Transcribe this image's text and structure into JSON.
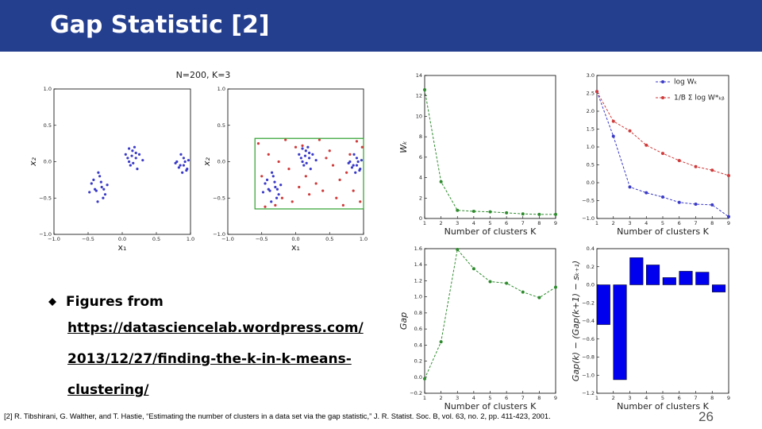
{
  "header": {
    "title": "Gap Statistic [2]"
  },
  "bullet": {
    "text": "Figures from",
    "link_lines": [
      "https://datasciencelab.wordpress.com/",
      "2013/12/27/finding-the-k-in-k-means-",
      "clustering/"
    ]
  },
  "footnote": "[2] R. Tibshirani, G. Walther, and T. Hastie, “Estimating the number of clusters in a data set via the gap statistic,” J. R. Statist. Soc. B, vol. 63, no. 2, pp. 411-423, 2001.",
  "page_number": "26",
  "chart_data": [
    {
      "type": "scatter",
      "title": "N=200, K=3",
      "xlabel": "x₁",
      "ylabel": "x₂",
      "xlim": [
        -1,
        1
      ],
      "ylim": [
        -1,
        1
      ],
      "xticks": [
        {
          "value": -1,
          "label": "−1.0"
        },
        {
          "value": -0.5,
          "label": "−0.5"
        },
        {
          "value": 0,
          "label": "0.0"
        },
        {
          "value": 0.5,
          "label": "0.5"
        },
        {
          "value": 1,
          "label": "1.0"
        }
      ],
      "yticks": [
        {
          "value": -1,
          "label": "−1.0"
        },
        {
          "value": -0.5,
          "label": "−0.5"
        },
        {
          "value": 0,
          "label": "0.0"
        },
        {
          "value": 0.5,
          "label": "0.5"
        },
        {
          "value": 1,
          "label": "1.0"
        }
      ],
      "series": [
        {
          "color": "#3a3ac8",
          "x": [
            -0.45,
            -0.38,
            -0.3,
            -0.25,
            -0.42,
            -0.33,
            -0.28,
            -0.4,
            -0.36,
            -0.22,
            -0.48,
            -0.31,
            -0.35,
            -0.27,
            0.05,
            0.1,
            0.15,
            0.2,
            0.25,
            0.12,
            0.18,
            0.08,
            0.22,
            0.14,
            0.3,
            0.16,
            0.1,
            0.2,
            0.8,
            0.85,
            0.9,
            0.95,
            0.88,
            0.92,
            0.83,
            0.97,
            0.9,
            0.86,
            0.78,
            0.94
          ],
          "y": [
            -0.3,
            -0.4,
            -0.35,
            -0.45,
            -0.25,
            -0.2,
            -0.5,
            -0.38,
            -0.55,
            -0.32,
            -0.42,
            -0.28,
            -0.15,
            -0.38,
            0.1,
            0,
            0.15,
            0.05,
            0.1,
            -0.05,
            0.2,
            0.05,
            -0.1,
            0.08,
            0.02,
            -0.02,
            0.18,
            0.12,
            0,
            -0.05,
            0.05,
            -0.1,
            -0.15,
            0,
            -0.08,
            0.02,
            -0.05,
            0.1,
            -0.02,
            -0.12
          ]
        }
      ]
    },
    {
      "type": "scatter",
      "xlabel": "x₁",
      "ylabel": "x₂",
      "xlim": [
        -1,
        1
      ],
      "ylim": [
        -1,
        1
      ],
      "xticks": [
        {
          "value": -1,
          "label": "−1.0"
        },
        {
          "value": -0.5,
          "label": "−0.5"
        },
        {
          "value": 0,
          "label": "0.0"
        },
        {
          "value": 0.5,
          "label": "0.5"
        },
        {
          "value": 1,
          "label": "1.0"
        }
      ],
      "yticks": [
        {
          "value": -1,
          "label": "−1.0"
        },
        {
          "value": -0.5,
          "label": "−0.5"
        },
        {
          "value": 0,
          "label": "0.0"
        },
        {
          "value": 0.5,
          "label": "0.5"
        },
        {
          "value": 1,
          "label": "1.0"
        }
      ],
      "box": {
        "x": [
          -0.6,
          1.0
        ],
        "y": [
          -0.65,
          0.32
        ],
        "color": "#2ca02c"
      },
      "series": [
        {
          "color": "#d03a3a",
          "x": [
            -0.55,
            -0.4,
            -0.2,
            0,
            0.3,
            0.5,
            0.7,
            0.9,
            -0.5,
            -0.1,
            0.2,
            0.45,
            0.65,
            0.95,
            -0.3,
            0.05,
            0.35,
            0.6,
            0.8,
            -0.45,
            -0.15,
            0.15,
            0.4,
            0.75,
            0.98,
            -0.25,
            0.1,
            0.55,
            0.85,
            -0.05
          ],
          "y": [
            0.25,
            0.1,
            -0.5,
            0.2,
            -0.3,
            0.15,
            -0.6,
            0.28,
            -0.2,
            -0.1,
            -0.45,
            0.05,
            -0.25,
            -0.55,
            -0.6,
            -0.35,
            0.3,
            -0.5,
            0.1,
            -0.62,
            0.3,
            -0.2,
            -0.4,
            -0.15,
            0.2,
            0,
            0.22,
            -0.05,
            -0.4,
            -0.55
          ]
        },
        {
          "color": "#3a3ac8",
          "x": [
            -0.45,
            -0.38,
            -0.3,
            -0.25,
            -0.42,
            -0.33,
            -0.28,
            -0.4,
            -0.36,
            -0.22,
            -0.48,
            -0.31,
            -0.35,
            -0.27,
            0.05,
            0.1,
            0.15,
            0.2,
            0.25,
            0.12,
            0.18,
            0.08,
            0.22,
            0.14,
            0.3,
            0.16,
            0.1,
            0.2,
            0.8,
            0.85,
            0.9,
            0.95,
            0.88,
            0.92,
            0.83,
            0.97,
            0.9,
            0.86,
            0.78,
            0.94
          ],
          "y": [
            -0.3,
            -0.4,
            -0.35,
            -0.45,
            -0.25,
            -0.2,
            -0.5,
            -0.38,
            -0.55,
            -0.32,
            -0.42,
            -0.28,
            -0.15,
            -0.38,
            0.1,
            0,
            0.15,
            0.05,
            0.1,
            -0.05,
            0.2,
            0.05,
            -0.1,
            0.08,
            0.02,
            -0.02,
            0.18,
            0.12,
            0,
            -0.05,
            0.05,
            -0.1,
            -0.15,
            0,
            -0.08,
            0.02,
            -0.05,
            0.1,
            -0.02,
            -0.12
          ]
        }
      ]
    },
    {
      "type": "line",
      "xlabel": "Number of clusters K",
      "ylabel": "Wₖ",
      "xlim": [
        1,
        9
      ],
      "ylim": [
        0,
        14
      ],
      "xticks": [
        1,
        2,
        3,
        4,
        5,
        6,
        7,
        8,
        9
      ],
      "yticks": [
        0,
        2,
        4,
        6,
        8,
        10,
        12,
        14
      ],
      "x": [
        1,
        2,
        3,
        4,
        5,
        6,
        7,
        8,
        9
      ],
      "series": [
        {
          "color": "#2e8b2e",
          "values": [
            12.6,
            3.6,
            0.8,
            0.7,
            0.65,
            0.55,
            0.45,
            0.4,
            0.4
          ]
        }
      ]
    },
    {
      "type": "line",
      "xlabel": "Number of clusters K",
      "legend": "upper right",
      "xlim": [
        1,
        9
      ],
      "ylim": [
        -1,
        3
      ],
      "xticks": [
        1,
        2,
        3,
        4,
        5,
        6,
        7,
        8,
        9
      ],
      "yticks": [
        {
          "value": -1,
          "label": "−1.0"
        },
        {
          "value": -0.5,
          "label": "−0.5"
        },
        {
          "value": 0,
          "label": "0.0"
        },
        {
          "value": 0.5,
          "label": "0.5"
        },
        {
          "value": 1,
          "label": "1.0"
        },
        {
          "value": 1.5,
          "label": "1.5"
        },
        {
          "value": 2,
          "label": "2.0"
        },
        {
          "value": 2.5,
          "label": "2.5"
        },
        {
          "value": 3,
          "label": "3.0"
        }
      ],
      "x": [
        1,
        2,
        3,
        4,
        5,
        6,
        7,
        8,
        9
      ],
      "series": [
        {
          "name": "log Wₖ",
          "color": "#3a3ac8",
          "values": [
            2.55,
            1.3,
            -0.12,
            -0.28,
            -0.4,
            -0.55,
            -0.6,
            -0.62,
            -0.95
          ]
        },
        {
          "name": "1/B Σ log W*ₖᵦ",
          "color": "#d03a3a",
          "values": [
            2.55,
            1.72,
            1.45,
            1.05,
            0.82,
            0.62,
            0.45,
            0.35,
            0.2
          ]
        }
      ]
    },
    {
      "type": "line",
      "xlabel": "Number of clusters K",
      "ylabel": "Gap",
      "xlim": [
        1,
        9
      ],
      "ylim": [
        -0.2,
        1.6
      ],
      "xticks": [
        1,
        2,
        3,
        4,
        5,
        6,
        7,
        8,
        9
      ],
      "yticks": [
        {
          "value": -0.2,
          "label": "−0.2"
        },
        {
          "value": 0,
          "label": "0.0"
        },
        0.2,
        0.4,
        0.6,
        0.8,
        {
          "value": 1,
          "label": "1.0"
        },
        1.2,
        1.4,
        1.6
      ],
      "x": [
        1,
        2,
        3,
        4,
        5,
        6,
        7,
        8,
        9
      ],
      "series": [
        {
          "color": "#2e8b2e",
          "values": [
            -0.02,
            0.44,
            1.59,
            1.35,
            1.19,
            1.17,
            1.06,
            0.99,
            1.12
          ]
        }
      ]
    },
    {
      "type": "bar",
      "xlabel": "Number of clusters K",
      "ylabel": "Gap(k) − (Gap(k+1) − sₖ₊₁)",
      "xlim": [
        1,
        9
      ],
      "ylim": [
        -1.2,
        0.4
      ],
      "xticks": [
        1,
        2,
        3,
        4,
        5,
        6,
        7,
        8,
        9
      ],
      "yticks": [
        {
          "value": -1.2,
          "label": "−1.2"
        },
        {
          "value": -1,
          "label": "−1.0"
        },
        {
          "value": -0.8,
          "label": "−0.8"
        },
        {
          "value": -0.6,
          "label": "−0.6"
        },
        {
          "value": -0.4,
          "label": "−0.4"
        },
        {
          "value": -0.2,
          "label": "−0.2"
        },
        {
          "value": 0,
          "label": "0.0"
        },
        0.2,
        0.4
      ],
      "x": [
        1,
        2,
        3,
        4,
        5,
        6,
        7,
        8
      ],
      "color": "#0000ee",
      "values": [
        -0.44,
        -1.05,
        0.3,
        0.22,
        0.08,
        0.15,
        0.14,
        -0.08
      ]
    }
  ]
}
